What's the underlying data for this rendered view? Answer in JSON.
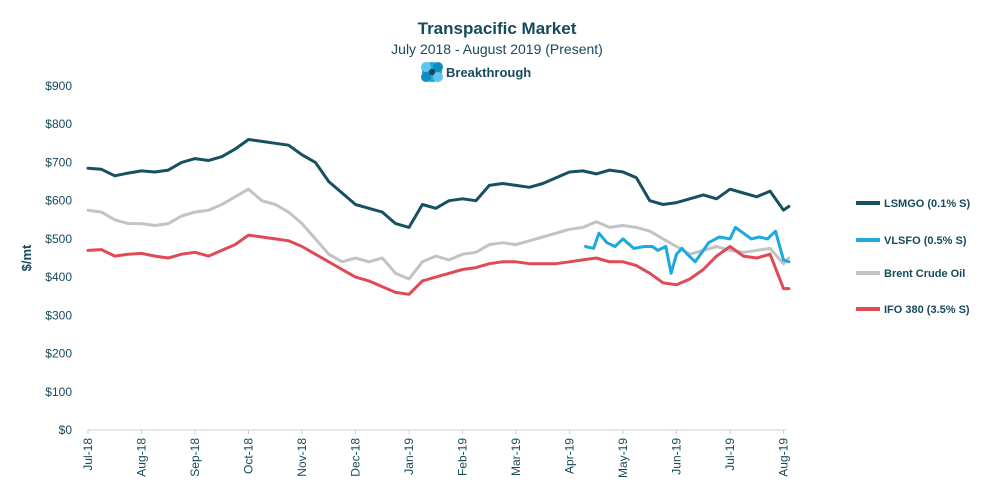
{
  "chart_data": {
    "type": "line",
    "title": "Transpacific Market",
    "subtitle": "July 2018 - August 2019 (Present)",
    "brand": "Breakthrough",
    "ylabel": "$/mt",
    "xlabel": "",
    "ylim": [
      0,
      900
    ],
    "yticks": [
      {
        "value": 0,
        "label": "$0"
      },
      {
        "value": 100,
        "label": "$100"
      },
      {
        "value": 200,
        "label": "$200"
      },
      {
        "value": 300,
        "label": "$300"
      },
      {
        "value": 400,
        "label": "$400"
      },
      {
        "value": 500,
        "label": "$500"
      },
      {
        "value": 600,
        "label": "$600"
      },
      {
        "value": 700,
        "label": "$700"
      },
      {
        "value": 800,
        "label": "$800"
      },
      {
        "value": 900,
        "label": "$900"
      }
    ],
    "xlim": [
      0,
      13.2
    ],
    "xticks": [
      {
        "value": 0,
        "label": "Jul-18"
      },
      {
        "value": 1,
        "label": "Aug-18"
      },
      {
        "value": 2,
        "label": "Sep-18"
      },
      {
        "value": 3,
        "label": "Oct-18"
      },
      {
        "value": 4,
        "label": "Nov-18"
      },
      {
        "value": 5,
        "label": "Dec-18"
      },
      {
        "value": 6,
        "label": "Jan-19"
      },
      {
        "value": 7,
        "label": "Feb-19"
      },
      {
        "value": 8,
        "label": "Mar-19"
      },
      {
        "value": 9,
        "label": "Apr-19"
      },
      {
        "value": 10,
        "label": "May-19"
      },
      {
        "value": 11,
        "label": "Jun-19"
      },
      {
        "value": 12,
        "label": "Jul-19"
      },
      {
        "value": 13,
        "label": "Aug-19"
      }
    ],
    "grid": false,
    "legend_position": "right",
    "series": [
      {
        "name": "LSMGO (0.1% S)",
        "color": "#17505f",
        "x": [
          0,
          0.25,
          0.5,
          0.75,
          1.0,
          1.25,
          1.5,
          1.75,
          2.0,
          2.25,
          2.5,
          2.75,
          3.0,
          3.25,
          3.5,
          3.75,
          4.0,
          4.25,
          4.5,
          4.75,
          5.0,
          5.25,
          5.5,
          5.75,
          6.0,
          6.25,
          6.5,
          6.75,
          7.0,
          7.25,
          7.5,
          7.75,
          8.0,
          8.25,
          8.5,
          8.75,
          9.0,
          9.25,
          9.5,
          9.75,
          10.0,
          10.25,
          10.5,
          10.75,
          11.0,
          11.25,
          11.5,
          11.75,
          12.0,
          12.25,
          12.5,
          12.75,
          13.0,
          13.1
        ],
        "values": [
          685,
          682,
          665,
          672,
          678,
          675,
          680,
          700,
          710,
          705,
          715,
          735,
          760,
          755,
          750,
          745,
          720,
          700,
          650,
          620,
          590,
          580,
          570,
          540,
          530,
          590,
          580,
          600,
          605,
          600,
          640,
          645,
          640,
          635,
          645,
          660,
          675,
          678,
          670,
          680,
          675,
          660,
          600,
          590,
          595,
          605,
          615,
          605,
          630,
          620,
          610,
          625,
          575,
          585
        ]
      },
      {
        "name": "VLSFO (0.5% S)",
        "color": "#1ba9e0",
        "x": [
          9.3,
          9.45,
          9.55,
          9.7,
          9.85,
          10.0,
          10.2,
          10.4,
          10.55,
          10.65,
          10.8,
          10.9,
          11.0,
          11.1,
          11.2,
          11.35,
          11.5,
          11.6,
          11.8,
          12.0,
          12.1,
          12.25,
          12.4,
          12.55,
          12.7,
          12.85,
          13.0,
          13.1
        ],
        "values": [
          480,
          475,
          515,
          490,
          480,
          500,
          475,
          480,
          480,
          470,
          480,
          410,
          460,
          475,
          460,
          440,
          470,
          490,
          505,
          500,
          530,
          515,
          500,
          505,
          500,
          520,
          445,
          440
        ]
      },
      {
        "name": "Brent Crude Oil",
        "color": "#c2c3c4",
        "x": [
          0,
          0.25,
          0.5,
          0.75,
          1.0,
          1.25,
          1.5,
          1.75,
          2.0,
          2.25,
          2.5,
          2.75,
          3.0,
          3.25,
          3.5,
          3.75,
          4.0,
          4.25,
          4.5,
          4.75,
          5.0,
          5.25,
          5.5,
          5.75,
          6.0,
          6.25,
          6.5,
          6.75,
          7.0,
          7.25,
          7.5,
          7.75,
          8.0,
          8.25,
          8.5,
          8.75,
          9.0,
          9.25,
          9.5,
          9.75,
          10.0,
          10.25,
          10.5,
          10.75,
          11.0,
          11.25,
          11.5,
          11.75,
          12.0,
          12.25,
          12.5,
          12.75,
          13.0,
          13.1
        ],
        "values": [
          575,
          570,
          550,
          540,
          540,
          535,
          540,
          560,
          570,
          575,
          590,
          610,
          630,
          600,
          590,
          570,
          540,
          500,
          460,
          440,
          450,
          440,
          450,
          410,
          395,
          440,
          455,
          445,
          460,
          465,
          485,
          490,
          485,
          495,
          505,
          515,
          525,
          530,
          545,
          530,
          535,
          530,
          520,
          500,
          480,
          460,
          470,
          480,
          470,
          465,
          470,
          475,
          435,
          450
        ]
      },
      {
        "name": "IFO 380 (3.5% S)",
        "color": "#e04a55",
        "x": [
          0,
          0.25,
          0.5,
          0.75,
          1.0,
          1.25,
          1.5,
          1.75,
          2.0,
          2.25,
          2.5,
          2.75,
          3.0,
          3.25,
          3.5,
          3.75,
          4.0,
          4.25,
          4.5,
          4.75,
          5.0,
          5.25,
          5.5,
          5.75,
          6.0,
          6.25,
          6.5,
          6.75,
          7.0,
          7.25,
          7.5,
          7.75,
          8.0,
          8.25,
          8.5,
          8.75,
          9.0,
          9.25,
          9.5,
          9.75,
          10.0,
          10.25,
          10.5,
          10.75,
          11.0,
          11.25,
          11.5,
          11.75,
          12.0,
          12.25,
          12.5,
          12.75,
          13.0,
          13.1
        ],
        "values": [
          470,
          472,
          455,
          460,
          462,
          455,
          450,
          460,
          465,
          455,
          470,
          485,
          510,
          505,
          500,
          495,
          480,
          460,
          440,
          420,
          400,
          390,
          375,
          360,
          355,
          390,
          400,
          410,
          420,
          425,
          435,
          440,
          440,
          435,
          435,
          435,
          440,
          445,
          450,
          440,
          440,
          430,
          410,
          385,
          380,
          395,
          420,
          455,
          480,
          455,
          450,
          460,
          370,
          370
        ]
      }
    ]
  }
}
